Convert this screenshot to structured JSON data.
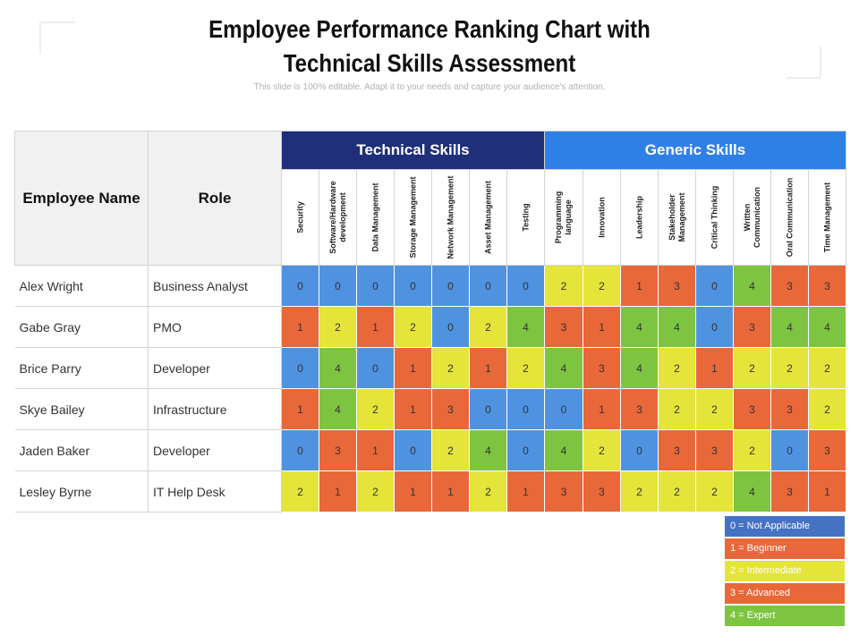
{
  "title_line1": "Employee Performance Ranking Chart with",
  "title_line2": "Technical Skills Assessment",
  "subtitle": "This slide is 100% editable. Adapt it to your needs and capture your audience's attention.",
  "colors": {
    "0": "#4f93e0",
    "1": "#e8683a",
    "2": "#e4e43a",
    "3": "#e8683a",
    "4": "#7dc540",
    "tech_header": "#1f2f7a",
    "generic_header": "#2f80e6"
  },
  "chart_data": {
    "type": "table",
    "headers": {
      "name": "Employee Name",
      "role": "Role",
      "technical": "Technical Skills",
      "generic": "Generic Skills"
    },
    "technical_skills": [
      "Security",
      "Software/Hardware development",
      "Data Management",
      "Storage Management",
      "Network Management",
      "Asset Management",
      "Testing"
    ],
    "generic_skills": [
      "Programming language",
      "Innovation",
      "Leadership",
      "Stakeholder Management",
      "Critical Thinking",
      "Written Communication",
      "Oral Communication",
      "Time Management"
    ],
    "rows": [
      {
        "name": "Alex Wright",
        "role": "Business Analyst",
        "scores": [
          0,
          0,
          0,
          0,
          0,
          0,
          0,
          2,
          2,
          1,
          3,
          0,
          4,
          3,
          3
        ]
      },
      {
        "name": "Gabe Gray",
        "role": "PMO",
        "scores": [
          1,
          2,
          1,
          2,
          0,
          2,
          4,
          3,
          1,
          4,
          4,
          0,
          3,
          4,
          4
        ]
      },
      {
        "name": "Brice Parry",
        "role": "Developer",
        "scores": [
          0,
          4,
          0,
          1,
          2,
          1,
          2,
          4,
          3,
          4,
          2,
          1,
          2,
          2,
          2
        ]
      },
      {
        "name": "Skye Bailey",
        "role": "Infrastructure",
        "scores": [
          1,
          4,
          2,
          1,
          3,
          0,
          0,
          0,
          1,
          3,
          2,
          2,
          3,
          3,
          2
        ]
      },
      {
        "name": "Jaden Baker",
        "role": "Developer",
        "scores": [
          0,
          3,
          1,
          0,
          2,
          4,
          0,
          4,
          2,
          0,
          3,
          3,
          2,
          0,
          3
        ]
      },
      {
        "name": "Lesley Byrne",
        "role": "IT Help Desk",
        "scores": [
          2,
          1,
          2,
          1,
          1,
          2,
          1,
          3,
          3,
          2,
          2,
          2,
          4,
          3,
          1
        ]
      }
    ],
    "legend": [
      {
        "value": 0,
        "label": "0 = Not Applicable",
        "color": "#4672c4"
      },
      {
        "value": 1,
        "label": "1 = Beginner",
        "color": "#e8683a"
      },
      {
        "value": 2,
        "label": "2 = Intermediate",
        "color": "#e4e43a"
      },
      {
        "value": 3,
        "label": "3 = Advanced",
        "color": "#e8683a"
      },
      {
        "value": 4,
        "label": "4 = Expert",
        "color": "#7dc540"
      }
    ]
  }
}
